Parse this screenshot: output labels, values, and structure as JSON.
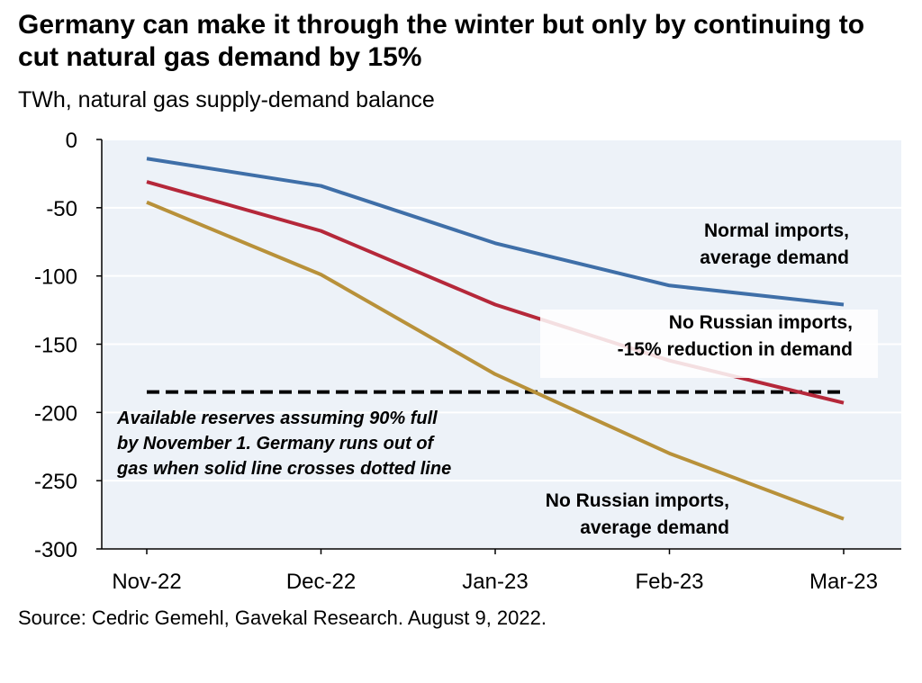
{
  "title": "Germany can make it through the winter but only by continuing to cut natural gas demand by 15%",
  "subtitle": "TWh, natural gas supply-demand balance",
  "source": "Source: Cedric Gemehl, Gavekal Research. August 9, 2022.",
  "chart_data": {
    "type": "line",
    "categories": [
      "Nov-22",
      "Dec-22",
      "Jan-23",
      "Feb-23",
      "Mar-23"
    ],
    "ylim": [
      -300,
      0
    ],
    "yticks": [
      0,
      -50,
      -100,
      -150,
      -200,
      -250,
      -300
    ],
    "ytick_labels": [
      "0",
      "-50",
      "-100",
      "-150",
      "-200",
      "-250",
      "-300"
    ],
    "grid": true,
    "series": [
      {
        "key": "normal",
        "values": [
          -14,
          -34,
          -76,
          -107,
          -121
        ],
        "color": "#3f6fa8"
      },
      {
        "key": "cut15",
        "values": [
          -31,
          -67,
          -121,
          -162,
          -193
        ],
        "color": "#b5283a"
      },
      {
        "key": "norussia",
        "values": [
          -46,
          -99,
          -172,
          -230,
          -278
        ],
        "color": "#b8913a"
      }
    ],
    "reserve_line": {
      "value": -185,
      "style": "dashed",
      "color": "#000000"
    },
    "annotations": {
      "normal": [
        "Normal imports,",
        "average demand"
      ],
      "cut15": [
        "No Russian imports,",
        "-15% reduction in demand"
      ],
      "norussia": [
        "No Russian imports,",
        "average demand"
      ],
      "reserve": [
        "Available reserves assuming 90% full",
        "by November 1.  Germany runs out of",
        "gas when solid line crosses dotted line"
      ]
    }
  }
}
